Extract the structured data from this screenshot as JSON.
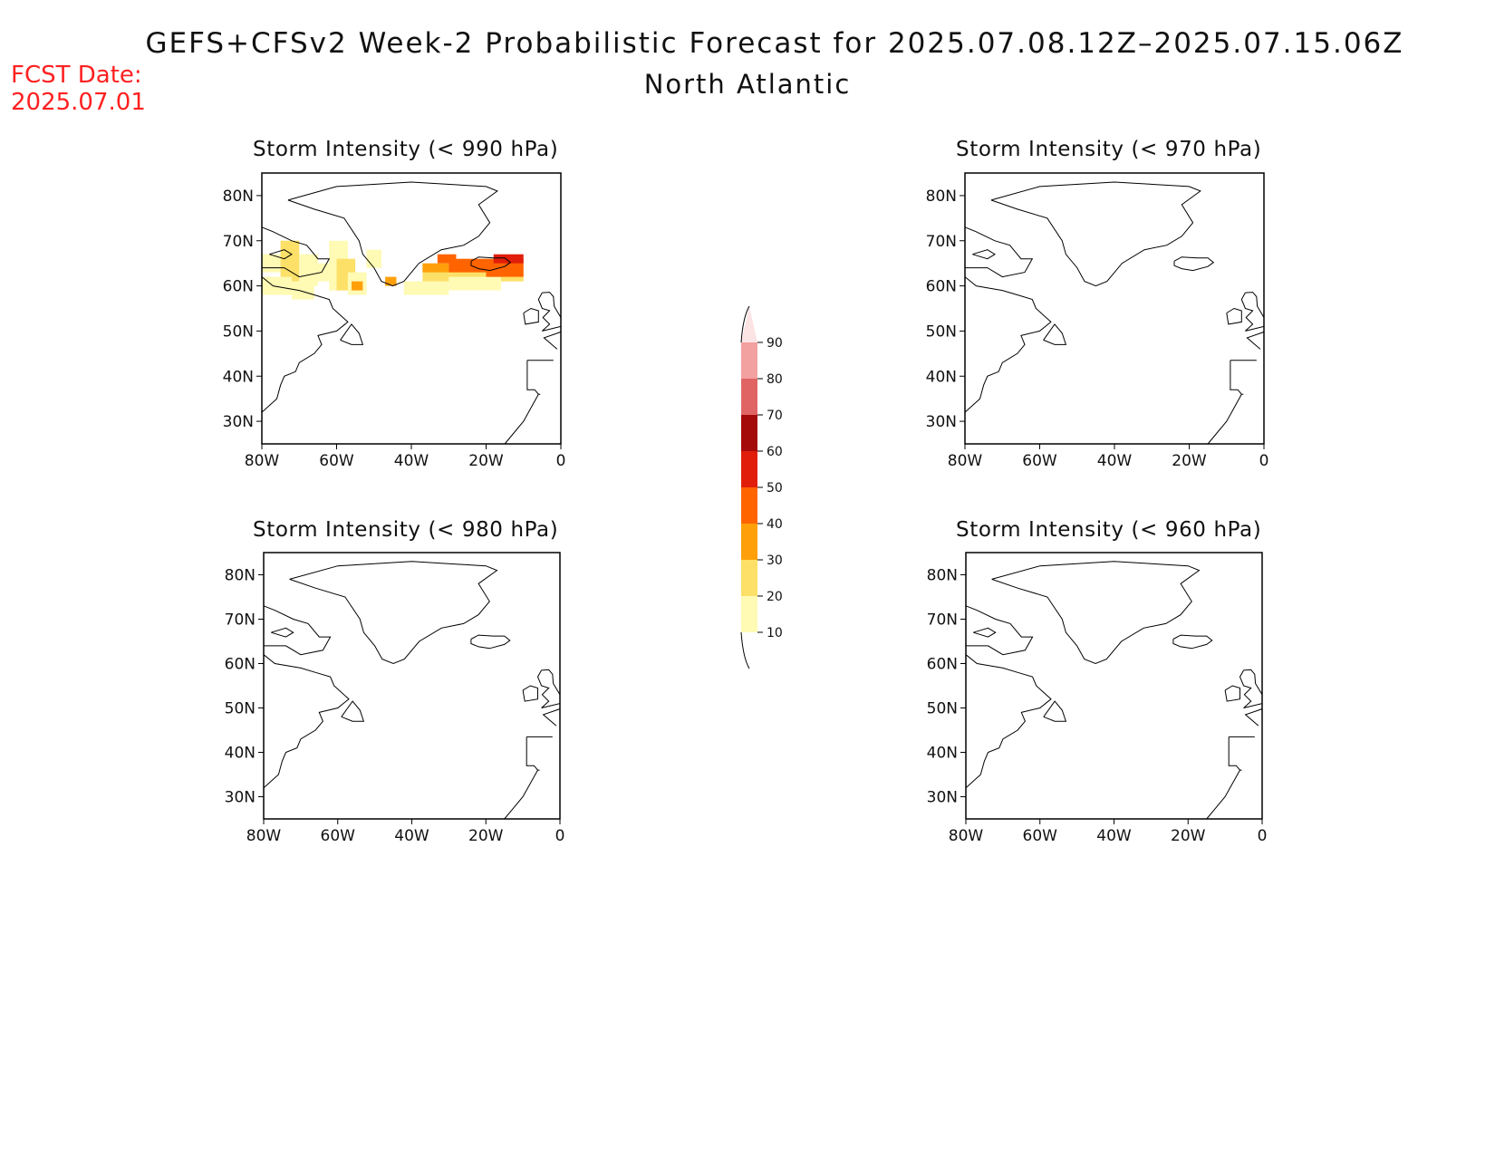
{
  "title": "GEFS+CFSv2 Week-2 Probabilistic Forecast for 2025.07.08.12Z–2025.07.15.06Z",
  "subtitle": "North Atlantic",
  "fcst_date": {
    "line1": "FCST Date:",
    "line2": "2025.07.01"
  },
  "axis_labels": {
    "lat": [
      "80N",
      "70N",
      "60N",
      "50N",
      "40N",
      "30N"
    ],
    "lon": [
      "80W",
      "60W",
      "40W",
      "20W",
      "0"
    ]
  },
  "panels": [
    {
      "title": "Storm Intensity (< 990 hPa)"
    },
    {
      "title": "Storm Intensity (< 970 hPa)"
    },
    {
      "title": "Storm Intensity (< 980 hPa)"
    },
    {
      "title": "Storm Intensity (< 960 hPa)"
    }
  ],
  "colorbar": {
    "labels": [
      "90",
      "80",
      "70",
      "60",
      "50",
      "40",
      "30",
      "20",
      "10"
    ],
    "colors": [
      "#fce4e4",
      "#f2a0a0",
      "#e06464",
      "#a50a0a",
      "#e01e0a",
      "#ff6400",
      "#ffa00a",
      "#fce068",
      "#fffab4"
    ]
  },
  "chart_data": {
    "type": "heatmap",
    "projection": "lat-lon",
    "lon_range": [
      -80,
      0
    ],
    "lat_range": [
      25,
      85
    ],
    "units": "probability (%)",
    "panels": [
      {
        "threshold": "< 990 hPa",
        "cells": [
          {
            "lon": [
              -80,
              -75
            ],
            "lat": [
              63,
              67
            ],
            "value": 15
          },
          {
            "lon": [
              -75,
              -70
            ],
            "lat": [
              61,
              70
            ],
            "value": 20
          },
          {
            "lon": [
              -70,
              -65
            ],
            "lat": [
              60,
              67
            ],
            "value": 15
          },
          {
            "lon": [
              -80,
              -72
            ],
            "lat": [
              58,
              62
            ],
            "value": 15
          },
          {
            "lon": [
              -72,
              -66
            ],
            "lat": [
              57,
              61
            ],
            "value": 15
          },
          {
            "lon": [
              -65,
              -60
            ],
            "lat": [
              61,
              65
            ],
            "value": 15
          },
          {
            "lon": [
              -62,
              -57
            ],
            "lat": [
              59,
              70
            ],
            "value": 15
          },
          {
            "lon": [
              -60,
              -55
            ],
            "lat": [
              59,
              66
            ],
            "value": 20
          },
          {
            "lon": [
              -57,
              -52
            ],
            "lat": [
              58,
              63
            ],
            "value": 15
          },
          {
            "lon": [
              -56,
              -53
            ],
            "lat": [
              59,
              61
            ],
            "value": 35
          },
          {
            "lon": [
              -52,
              -48
            ],
            "lat": [
              64,
              68
            ],
            "value": 15
          },
          {
            "lon": [
              -47,
              -44
            ],
            "lat": [
              60,
              62
            ],
            "value": 35
          },
          {
            "lon": [
              -42,
              -30
            ],
            "lat": [
              58,
              61
            ],
            "value": 15
          },
          {
            "lon": [
              -37,
              -10
            ],
            "lat": [
              61,
              64
            ],
            "value": 20
          },
          {
            "lon": [
              -30,
              -16
            ],
            "lat": [
              59,
              62
            ],
            "value": 15
          },
          {
            "lon": [
              -37,
              -30
            ],
            "lat": [
              63,
              65
            ],
            "value": 35
          },
          {
            "lon": [
              -30,
              -20
            ],
            "lat": [
              63,
              66
            ],
            "value": 45
          },
          {
            "lon": [
              -20,
              -10
            ],
            "lat": [
              62,
              66
            ],
            "value": 45
          },
          {
            "lon": [
              -33,
              -28
            ],
            "lat": [
              65,
              67
            ],
            "value": 45
          },
          {
            "lon": [
              -18,
              -10
            ],
            "lat": [
              65,
              67
            ],
            "value": 55
          }
        ]
      },
      {
        "threshold": "< 970 hPa",
        "cells": []
      },
      {
        "threshold": "< 980 hPa",
        "cells": []
      },
      {
        "threshold": "< 960 hPa",
        "cells": []
      }
    ],
    "colorbar_levels": [
      10,
      20,
      30,
      40,
      50,
      60,
      70,
      80,
      90
    ]
  }
}
